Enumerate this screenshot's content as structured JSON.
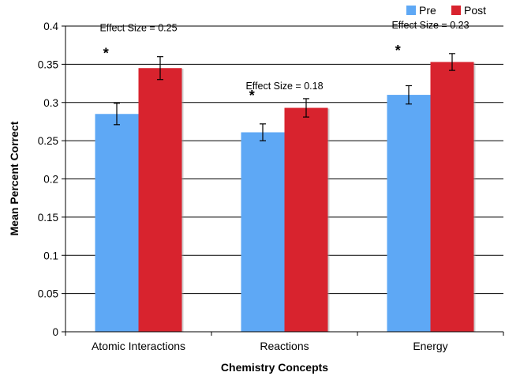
{
  "chart_data": {
    "type": "bar",
    "title": "",
    "xlabel": "Chemistry Concepts",
    "ylabel": "Mean Percent Correct",
    "categories": [
      "Atomic Interactions",
      "Reactions",
      "Energy"
    ],
    "series": [
      {
        "name": "Pre",
        "color": "#5ea8f5",
        "values": [
          0.285,
          0.261,
          0.31
        ],
        "error": [
          0.014,
          0.011,
          0.012
        ]
      },
      {
        "name": "Post",
        "color": "#d8232e",
        "values": [
          0.345,
          0.293,
          0.353
        ],
        "error": [
          0.015,
          0.012,
          0.011
        ]
      }
    ],
    "ylim": [
      0,
      0.4
    ],
    "yticks": [
      0,
      0.05,
      0.1,
      0.15,
      0.2,
      0.25,
      0.3,
      0.35,
      0.4
    ],
    "ytick_labels": [
      "0",
      "0.05",
      "0.1",
      "0.15",
      "0.2",
      "0.25",
      "0.3",
      "0.35",
      "0.4"
    ],
    "grid": true,
    "legend_position": "top-right",
    "annotations": [
      {
        "category": "Atomic Interactions",
        "text": "Effect Size = 0.25",
        "marker": "*"
      },
      {
        "category": "Reactions",
        "text": "Effect Size = 0.18",
        "marker": "*"
      },
      {
        "category": "Energy",
        "text": "Effect Size = 0.23",
        "marker": "*"
      }
    ]
  }
}
